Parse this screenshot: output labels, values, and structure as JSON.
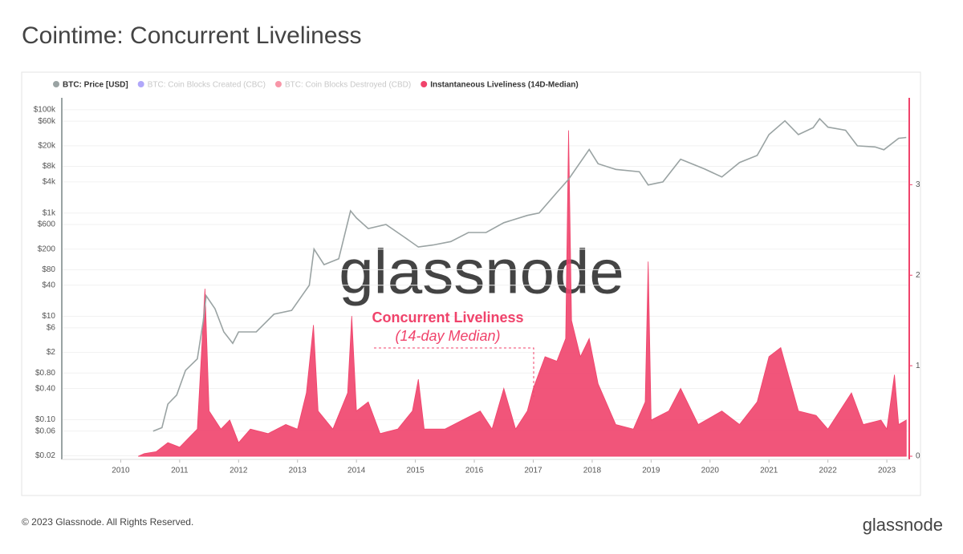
{
  "chart_data": {
    "type": "line",
    "title": "Cointime: Concurrent Liveliness",
    "watermark": "glassnode",
    "annotation": {
      "title": "Concurrent Liveliness",
      "subtitle": "(14-day Median)"
    },
    "footer": "© 2023 Glassnode. All Rights Reserved.",
    "brand": "glassnode",
    "xlim": [
      2009,
      2023.38
    ],
    "xticks": [
      2010,
      2011,
      2012,
      2013,
      2014,
      2015,
      2016,
      2017,
      2018,
      2019,
      2020,
      2021,
      2022,
      2023
    ],
    "ylim": [
      0.017,
      170000
    ],
    "ylog": true,
    "grid": true,
    "yticks": [
      {
        "value": 100000,
        "label": "$100k"
      },
      {
        "value": 60000,
        "label": "$60k"
      },
      {
        "value": 20000,
        "label": "$20k"
      },
      {
        "value": 8000,
        "label": "$8k"
      },
      {
        "value": 4000,
        "label": "$4k"
      },
      {
        "value": 1000,
        "label": "$1k"
      },
      {
        "value": 600,
        "label": "$600"
      },
      {
        "value": 200,
        "label": "$200"
      },
      {
        "value": 80,
        "label": "$80"
      },
      {
        "value": 40,
        "label": "$40"
      },
      {
        "value": 10,
        "label": "$10"
      },
      {
        "value": 6,
        "label": "$6"
      },
      {
        "value": 2,
        "label": "$2"
      },
      {
        "value": 0.8,
        "label": "$0.80"
      },
      {
        "value": 0.4,
        "label": "$0.40"
      },
      {
        "value": 0.1,
        "label": "$0.10"
      },
      {
        "value": 0.06,
        "label": "$0.06"
      },
      {
        "value": 0.02,
        "label": "$0.02"
      }
    ],
    "y2lim": [
      -0.035,
      3.96
    ],
    "y2ticks": [
      0,
      1,
      2,
      3
    ],
    "series": [
      {
        "name": "BTC: Price [USD]",
        "color": "#9aa3a3",
        "axis": "y",
        "x": [
          2010.55,
          2010.7,
          2010.8,
          2010.95,
          2011.1,
          2011.3,
          2011.4,
          2011.45,
          2011.6,
          2011.75,
          2011.9,
          2012.0,
          2012.3,
          2012.6,
          2012.9,
          2013.2,
          2013.28,
          2013.45,
          2013.7,
          2013.9,
          2014.0,
          2014.2,
          2014.5,
          2014.8,
          2015.05,
          2015.3,
          2015.6,
          2015.9,
          2016.2,
          2016.5,
          2016.9,
          2017.1,
          2017.4,
          2017.6,
          2017.95,
          2018.1,
          2018.4,
          2018.8,
          2018.95,
          2019.2,
          2019.5,
          2019.9,
          2020.2,
          2020.5,
          2020.8,
          2021.0,
          2021.27,
          2021.5,
          2021.75,
          2021.86,
          2022.0,
          2022.3,
          2022.5,
          2022.8,
          2022.95,
          2023.2,
          2023.33
        ],
        "values": [
          0.06,
          0.07,
          0.2,
          0.3,
          0.9,
          1.5,
          8,
          25,
          14,
          5,
          3,
          5,
          5,
          11,
          13,
          40,
          200,
          100,
          130,
          1100,
          800,
          500,
          600,
          350,
          220,
          240,
          280,
          420,
          420,
          650,
          900,
          1000,
          2500,
          4500,
          17000,
          9000,
          7000,
          6300,
          3500,
          4000,
          11000,
          7200,
          5000,
          9500,
          13000,
          33000,
          61000,
          33000,
          45000,
          67000,
          46000,
          40000,
          20000,
          19000,
          16800,
          28000,
          29000
        ]
      },
      {
        "name": "BTC: Coin Blocks Created (CBC)",
        "color": "#7b6cf6",
        "hidden": true
      },
      {
        "name": "BTC: Coin Blocks Destroyed (CBD)",
        "color": "#f4506e",
        "hidden": true
      },
      {
        "name": "Instantaneous Liveliness (14D-Median)",
        "color": "#f0436b",
        "axis": "y2",
        "kind": "area",
        "x": [
          2010.3,
          2010.4,
          2010.6,
          2010.8,
          2011.0,
          2011.3,
          2011.43,
          2011.5,
          2011.7,
          2011.85,
          2012.0,
          2012.2,
          2012.5,
          2012.8,
          2013.0,
          2013.15,
          2013.27,
          2013.35,
          2013.6,
          2013.85,
          2013.92,
          2014.0,
          2014.2,
          2014.4,
          2014.7,
          2014.95,
          2015.05,
          2015.15,
          2015.5,
          2015.8,
          2016.1,
          2016.3,
          2016.5,
          2016.7,
          2016.9,
          2017.0,
          2017.2,
          2017.4,
          2017.55,
          2017.6,
          2017.65,
          2017.8,
          2017.95,
          2018.1,
          2018.4,
          2018.7,
          2018.9,
          2018.95,
          2019.0,
          2019.3,
          2019.5,
          2019.8,
          2020.2,
          2020.5,
          2020.8,
          2021.0,
          2021.2,
          2021.5,
          2021.8,
          2022.0,
          2022.4,
          2022.6,
          2022.9,
          2023.0,
          2023.13,
          2023.2,
          2023.33
        ],
        "values": [
          0,
          0.03,
          0.05,
          0.15,
          0.1,
          0.3,
          1.85,
          0.5,
          0.3,
          0.4,
          0.15,
          0.3,
          0.25,
          0.35,
          0.3,
          0.7,
          1.45,
          0.5,
          0.3,
          0.7,
          1.55,
          0.5,
          0.6,
          0.25,
          0.3,
          0.5,
          0.85,
          0.3,
          0.3,
          0.4,
          0.5,
          0.3,
          0.75,
          0.3,
          0.5,
          0.75,
          1.1,
          1.05,
          1.3,
          3.6,
          1.5,
          1.1,
          1.3,
          0.8,
          0.35,
          0.3,
          0.6,
          2.15,
          0.4,
          0.5,
          0.75,
          0.35,
          0.5,
          0.35,
          0.6,
          1.1,
          1.2,
          0.5,
          0.45,
          0.3,
          0.7,
          0.35,
          0.4,
          0.3,
          0.9,
          0.35,
          0.4
        ]
      }
    ]
  }
}
